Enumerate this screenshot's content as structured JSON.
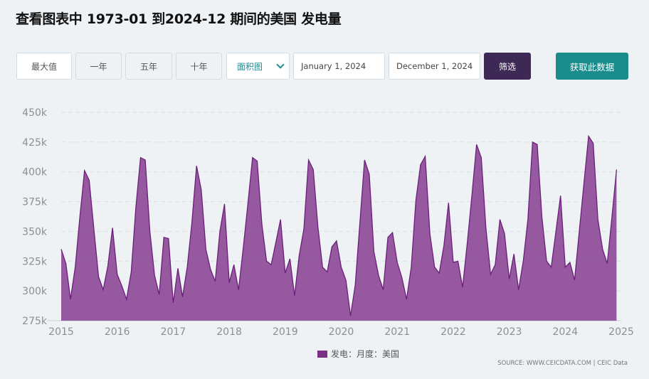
{
  "page": {
    "title": "查看图表中 1973-01 到2024-12 期间的美国 发电量",
    "source": "SOURCE: WWW.CEICDATA.COM | CEIC Data"
  },
  "controls": {
    "max_label": "最大值",
    "one_year_label": "一年",
    "five_year_label": "五年",
    "ten_year_label": "十年",
    "chart_type": "面积图",
    "start_date": "January 1, 2024",
    "end_date": "December 1, 2024",
    "filter_label": "筛选",
    "get_data_label": "获取此数据"
  },
  "colors": {
    "accent_teal": "#1b8c8c",
    "filter_purple": "#3e2855",
    "series_fill": "#8e4c98",
    "series_line": "#6c1f7a"
  },
  "chart_data": {
    "type": "area",
    "title": "",
    "xlabel": "",
    "ylabel": "",
    "ylim": [
      275000,
      450000
    ],
    "xlim": [
      2015,
      2025
    ],
    "yticks": [
      275000,
      300000,
      325000,
      350000,
      375000,
      400000,
      425000,
      450000
    ],
    "ytick_labels": [
      "275k",
      "300k",
      "325k",
      "350k",
      "375k",
      "400k",
      "425k",
      "450k"
    ],
    "xticks": [
      2015,
      2016,
      2017,
      2018,
      2019,
      2020,
      2021,
      2022,
      2023,
      2024,
      2025
    ],
    "xtick_labels": [
      "2015",
      "2016",
      "2017",
      "2018",
      "2019",
      "2020",
      "2021",
      "2022",
      "2023",
      "2024",
      "2025"
    ],
    "grid": "horizontal-dashed",
    "legend_position": "bottom-center",
    "series": [
      {
        "name": "发电：月度：美国",
        "start": "2015-01",
        "frequency": "monthly",
        "values": [
          335000,
          323000,
          293000,
          320000,
          362000,
          401000,
          393000,
          352000,
          312000,
          301000,
          321000,
          353000,
          314000,
          304000,
          293000,
          316000,
          370000,
          412000,
          410000,
          350000,
          313000,
          297000,
          345000,
          344000,
          290000,
          319000,
          295000,
          320000,
          357000,
          405000,
          385000,
          335000,
          318000,
          308000,
          350000,
          373000,
          307000,
          322000,
          301000,
          336000,
          373000,
          412000,
          409000,
          356000,
          325000,
          322000,
          341000,
          360000,
          315000,
          327000,
          296000,
          330000,
          352000,
          410000,
          402000,
          354000,
          320000,
          316000,
          337000,
          342000,
          320000,
          309000,
          279000,
          305000,
          357000,
          410000,
          398000,
          333000,
          313000,
          301000,
          345000,
          349000,
          324000,
          311000,
          293000,
          320000,
          376000,
          406000,
          413000,
          348000,
          320000,
          315000,
          338000,
          374000,
          324000,
          325000,
          303000,
          340000,
          380000,
          423000,
          412000,
          353000,
          314000,
          322000,
          360000,
          348000,
          310000,
          331000,
          301000,
          325000,
          360000,
          425000,
          423000,
          362000,
          325000,
          320000,
          350000,
          380000,
          320000,
          324000,
          309000,
          350000,
          390000,
          430000,
          424000,
          360000,
          335000,
          323000,
          362000,
          402000
        ]
      }
    ]
  }
}
